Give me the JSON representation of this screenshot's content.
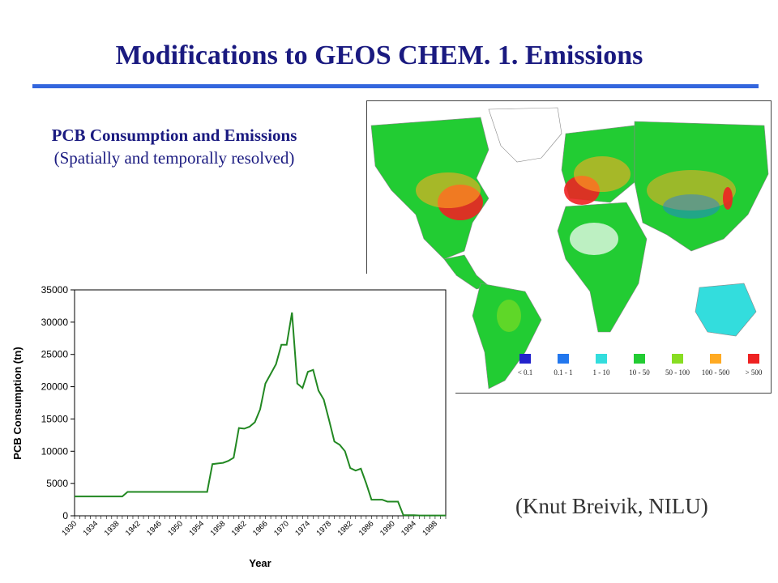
{
  "header": {
    "title": "Modifications to GEOS CHEM. 1. Emissions"
  },
  "subtitle": {
    "heading": "PCB Consumption and Emissions",
    "caption": "(Spatially and temporally resolved)"
  },
  "credit": "(Knut Breivik, NILU)",
  "map": {
    "legend": [
      {
        "label": "< 0.1",
        "color": "#2222cc"
      },
      {
        "label": "0.1 - 1",
        "color": "#2277ee"
      },
      {
        "label": "1 - 10",
        "color": "#33dddd"
      },
      {
        "label": "10 - 50",
        "color": "#22cc33"
      },
      {
        "label": "50 - 100",
        "color": "#88dd22"
      },
      {
        "label": "100 - 500",
        "color": "#ffaa22"
      },
      {
        "label": "> 500",
        "color": "#ee2222"
      }
    ]
  },
  "chart_data": {
    "type": "line",
    "xlabel": "Year",
    "ylabel": "PCB Consumption (tn)",
    "ylim": [
      0,
      35000
    ],
    "yticks": [
      0,
      5000,
      10000,
      15000,
      20000,
      25000,
      30000,
      35000
    ],
    "xticks": [
      "1930",
      "1934",
      "1938",
      "1942",
      "1946",
      "1950",
      "1954",
      "1958",
      "1962",
      "1966",
      "1970",
      "1974",
      "1978",
      "1982",
      "1986",
      "1990",
      "1994",
      "1998"
    ],
    "grid": false,
    "line_color": "#228822",
    "x": [
      1930,
      1931,
      1932,
      1933,
      1934,
      1935,
      1936,
      1937,
      1938,
      1939,
      1940,
      1941,
      1942,
      1943,
      1944,
      1945,
      1946,
      1947,
      1948,
      1949,
      1950,
      1951,
      1952,
      1953,
      1954,
      1955,
      1956,
      1957,
      1958,
      1959,
      1960,
      1961,
      1962,
      1963,
      1964,
      1965,
      1966,
      1967,
      1968,
      1969,
      1970,
      1971,
      1972,
      1973,
      1974,
      1975,
      1976,
      1977,
      1978,
      1979,
      1980,
      1981,
      1982,
      1983,
      1984,
      1985,
      1986,
      1987,
      1988,
      1989,
      1990,
      1991,
      1992,
      1993,
      1994,
      1995,
      1996,
      1997,
      1998,
      1999,
      2000
    ],
    "y": [
      3000,
      3000,
      3000,
      3000,
      3000,
      3000,
      3000,
      3000,
      3000,
      3000,
      3700,
      3700,
      3700,
      3700,
      3700,
      3700,
      3700,
      3700,
      3700,
      3700,
      3700,
      3700,
      3700,
      3700,
      3700,
      3700,
      8000,
      8100,
      8200,
      8500,
      9000,
      13600,
      13500,
      13800,
      14500,
      16500,
      20500,
      22000,
      23500,
      26500,
      26500,
      31500,
      20500,
      19800,
      22300,
      22600,
      19400,
      18000,
      14800,
      11500,
      11000,
      10000,
      7400,
      7000,
      7300,
      5000,
      2500,
      2500,
      2500,
      2200,
      2200,
      2200,
      100,
      100,
      100,
      50,
      50,
      50,
      50,
      50,
      50
    ]
  }
}
